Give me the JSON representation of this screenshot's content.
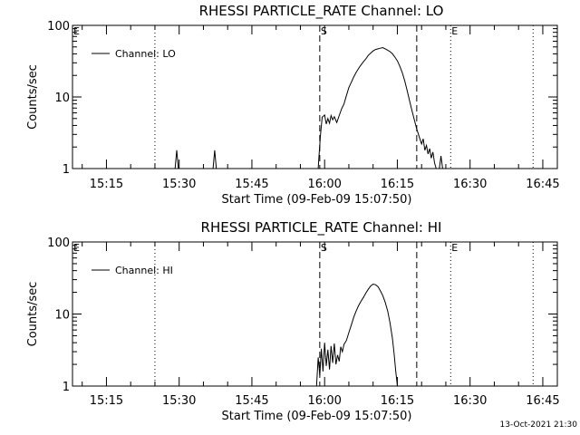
{
  "chart_data": [
    {
      "type": "line",
      "title": "RHESSI PARTICLE_RATE Channel: LO",
      "xlabel": "Start Time (09-Feb-09 15:07:50)",
      "ylabel": "Counts/sec",
      "y_scale": "log",
      "ylim": [
        1,
        100
      ],
      "xlim": [
        "15:08",
        "16:48"
      ],
      "x_tick_labels": [
        "15:15",
        "15:30",
        "15:45",
        "16:00",
        "16:15",
        "16:30",
        "16:45"
      ],
      "y_tick_labels": [
        "1",
        "10",
        "100"
      ],
      "legend": {
        "placement": "top-left",
        "entries": [
          "Channel: LO"
        ]
      },
      "markers": [
        {
          "label": "E",
          "time": "15:08",
          "style": "dotted"
        },
        {
          "label": "",
          "time": "15:25",
          "style": "dotted"
        },
        {
          "label": "S",
          "time": "15:59",
          "style": "dashed"
        },
        {
          "label": "",
          "time": "16:19",
          "style": "dashed"
        },
        {
          "label": "E",
          "time": "16:26",
          "style": "dotted"
        },
        {
          "label": "",
          "time": "16:43",
          "style": "dotted"
        }
      ],
      "series": [
        {
          "name": "Channel: LO",
          "segments": [
            [
              [
                "15:29:10",
                1
              ],
              [
                "15:29:30",
                1.8
              ],
              [
                "15:29:50",
                1
              ]
            ],
            [
              [
                "15:37:00",
                1
              ],
              [
                "15:37:20",
                1.8
              ],
              [
                "15:37:40",
                1
              ]
            ],
            [
              [
                "15:58:40",
                1
              ],
              [
                "15:58:50",
                1.5
              ],
              [
                "15:59:10",
                3
              ],
              [
                "15:59:30",
                5.2
              ],
              [
                "16:00:00",
                5.6
              ],
              [
                "16:00:20",
                4.2
              ],
              [
                "16:00:40",
                5.0
              ],
              [
                "16:01:00",
                4.3
              ],
              [
                "16:01:20",
                5.5
              ],
              [
                "16:01:40",
                4.8
              ],
              [
                "16:02:00",
                5.3
              ],
              [
                "16:02:30",
                4.4
              ],
              [
                "16:03:00",
                5.5
              ],
              [
                "16:03:30",
                6.8
              ],
              [
                "16:04:00",
                8.0
              ],
              [
                "16:04:30",
                10.5
              ],
              [
                "16:05:00",
                13.5
              ],
              [
                "16:05:30",
                16
              ],
              [
                "16:06:00",
                19
              ],
              [
                "16:06:30",
                22
              ],
              [
                "16:07:00",
                25
              ],
              [
                "16:07:30",
                28
              ],
              [
                "16:08:00",
                31
              ],
              [
                "16:08:30",
                34
              ],
              [
                "16:09:00",
                38
              ],
              [
                "16:09:30",
                41
              ],
              [
                "16:10:00",
                44
              ],
              [
                "16:10:30",
                46
              ],
              [
                "16:11:00",
                47
              ],
              [
                "16:11:30",
                48
              ],
              [
                "16:12:00",
                49
              ],
              [
                "16:12:30",
                47
              ],
              [
                "16:13:00",
                45
              ],
              [
                "16:13:30",
                43
              ],
              [
                "16:14:00",
                40
              ],
              [
                "16:14:30",
                36
              ],
              [
                "16:15:00",
                32
              ],
              [
                "16:15:30",
                27
              ],
              [
                "16:16:00",
                22
              ],
              [
                "16:16:30",
                17
              ],
              [
                "16:17:00",
                12.5
              ],
              [
                "16:17:30",
                9
              ],
              [
                "16:18:00",
                6.5
              ],
              [
                "16:18:30",
                4.8
              ],
              [
                "16:19:00",
                3.6
              ],
              [
                "16:19:30",
                2.8
              ],
              [
                "16:20:00",
                2.2
              ],
              [
                "16:20:20",
                2.6
              ],
              [
                "16:20:40",
                1.8
              ],
              [
                "16:21:00",
                2.1
              ],
              [
                "16:21:20",
                1.6
              ],
              [
                "16:21:40",
                1.9
              ],
              [
                "16:22:00",
                1.4
              ],
              [
                "16:22:20",
                1.7
              ],
              [
                "16:22:40",
                1.2
              ],
              [
                "16:23:00",
                1
              ]
            ],
            [
              [
                "16:23:40",
                1
              ],
              [
                "16:24:00",
                1.5
              ],
              [
                "16:24:20",
                1
              ]
            ]
          ]
        }
      ]
    },
    {
      "type": "line",
      "title": "RHESSI PARTICLE_RATE Channel: HI",
      "xlabel": "Start Time (09-Feb-09 15:07:50)",
      "ylabel": "Counts/sec",
      "y_scale": "log",
      "ylim": [
        1,
        100
      ],
      "xlim": [
        "15:08",
        "16:48"
      ],
      "x_tick_labels": [
        "15:15",
        "15:30",
        "15:45",
        "16:00",
        "16:15",
        "16:30",
        "16:45"
      ],
      "y_tick_labels": [
        "1",
        "10",
        "100"
      ],
      "legend": {
        "placement": "top-left",
        "entries": [
          "Channel: HI"
        ]
      },
      "markers": [
        {
          "label": "E",
          "time": "15:08",
          "style": "dotted"
        },
        {
          "label": "",
          "time": "15:25",
          "style": "dotted"
        },
        {
          "label": "S",
          "time": "15:59",
          "style": "dashed"
        },
        {
          "label": "",
          "time": "16:19",
          "style": "dashed"
        },
        {
          "label": "E",
          "time": "16:26",
          "style": "dotted"
        },
        {
          "label": "",
          "time": "16:43",
          "style": "dotted"
        }
      ],
      "series": [
        {
          "name": "Channel: HI",
          "segments": [
            [
              [
                "15:58:20",
                1
              ],
              [
                "15:58:40",
                2.5
              ],
              [
                "15:59:00",
                1.4
              ],
              [
                "15:59:20",
                3.3
              ],
              [
                "15:59:40",
                1.6
              ],
              [
                "16:00:00",
                4.0
              ],
              [
                "16:00:20",
                1.9
              ],
              [
                "16:00:40",
                3.2
              ],
              [
                "16:01:00",
                1.7
              ],
              [
                "16:01:20",
                3.6
              ],
              [
                "16:01:40",
                2.1
              ],
              [
                "16:02:00",
                3.9
              ],
              [
                "16:02:20",
                2.0
              ],
              [
                "16:02:40",
                2.7
              ],
              [
                "16:03:00",
                2.2
              ],
              [
                "16:03:20",
                3.5
              ],
              [
                "16:03:40",
                3.0
              ],
              [
                "16:04:00",
                3.8
              ],
              [
                "16:04:30",
                4.3
              ],
              [
                "16:05:00",
                5.5
              ],
              [
                "16:05:30",
                7.0
              ],
              [
                "16:06:00",
                9.0
              ],
              [
                "16:06:30",
                11
              ],
              [
                "16:07:00",
                13
              ],
              [
                "16:07:30",
                15
              ],
              [
                "16:08:00",
                17
              ],
              [
                "16:08:30",
                19.5
              ],
              [
                "16:09:00",
                22
              ],
              [
                "16:09:30",
                24.5
              ],
              [
                "16:10:00",
                26
              ],
              [
                "16:10:30",
                25.5
              ],
              [
                "16:11:00",
                24
              ],
              [
                "16:11:30",
                21
              ],
              [
                "16:12:00",
                18
              ],
              [
                "16:12:30",
                14.5
              ],
              [
                "16:13:00",
                11
              ],
              [
                "16:13:30",
                7.5
              ],
              [
                "16:14:00",
                4.5
              ],
              [
                "16:14:20",
                2.8
              ],
              [
                "16:14:40",
                1.6
              ],
              [
                "16:15:00",
                1
              ]
            ]
          ]
        }
      ]
    }
  ],
  "footer": {
    "timestamp": "13-Oct-2021 21:30"
  }
}
